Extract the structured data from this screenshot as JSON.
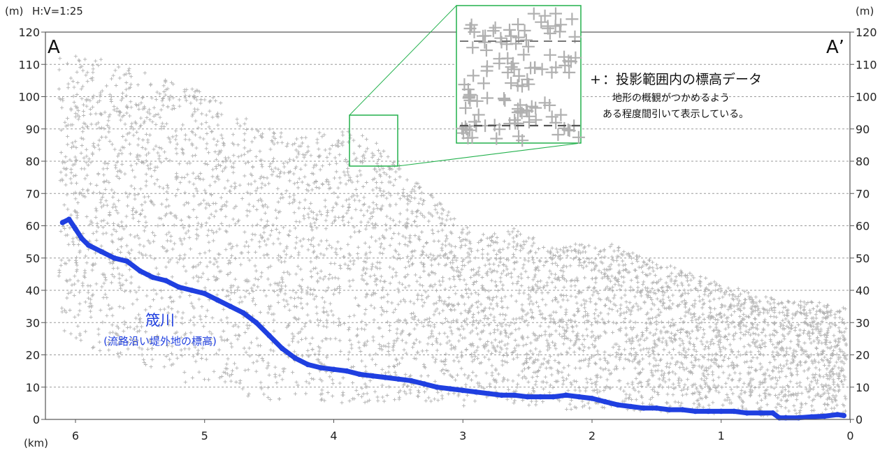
{
  "chart_data": {
    "type": "scatter",
    "title": "",
    "scale_note": "H:V=1:25",
    "y_unit_left": "(m)",
    "y_unit_right": "(m)",
    "x_unit": "(km)",
    "start_label": "A",
    "end_label": "A’",
    "x_ticks": [
      6,
      5,
      4,
      3,
      2,
      1,
      0
    ],
    "y_ticks": [
      0,
      10,
      20,
      30,
      40,
      50,
      60,
      70,
      80,
      90,
      100,
      110,
      120
    ],
    "xlim": [
      6.15,
      0
    ],
    "ylim": [
      0,
      120
    ],
    "grid": "horizontal dashed",
    "legend": {
      "marker": "+",
      "line1": "：投影範囲内の標高データ",
      "line2": "地形の概観がつかめるよう",
      "line3": "ある程度間引いて表示している。"
    },
    "river_label": {
      "name": "筬川",
      "detail": "(流路沿い堤外地の標高)"
    },
    "inset": "magnified view of elevation points near 3.6–3.8 km, 80–92 m",
    "colors": {
      "river": "#1f3fe0",
      "points": "#b4b4b4",
      "inset_frame": "#22b14c"
    },
    "series": [
      {
        "name": "筬川",
        "x": [
          6.1,
          6.05,
          6.0,
          5.95,
          5.9,
          5.8,
          5.7,
          5.6,
          5.5,
          5.4,
          5.3,
          5.2,
          5.1,
          5.0,
          4.9,
          4.8,
          4.7,
          4.6,
          4.5,
          4.4,
          4.3,
          4.2,
          4.1,
          4.0,
          3.9,
          3.8,
          3.7,
          3.6,
          3.5,
          3.4,
          3.3,
          3.2,
          3.1,
          3.0,
          2.9,
          2.8,
          2.7,
          2.6,
          2.5,
          2.4,
          2.3,
          2.2,
          2.1,
          2.0,
          1.9,
          1.8,
          1.7,
          1.6,
          1.5,
          1.4,
          1.3,
          1.2,
          1.1,
          1.0,
          0.9,
          0.8,
          0.7,
          0.6,
          0.55,
          0.5,
          0.4,
          0.3,
          0.2,
          0.1,
          0.05
        ],
        "y": [
          61,
          62,
          59,
          56,
          54,
          52,
          50,
          49,
          46,
          44,
          43,
          41,
          40,
          39,
          37,
          35,
          33,
          30,
          26,
          22,
          19,
          17,
          16,
          15.5,
          15,
          14,
          13.5,
          13,
          12.5,
          12,
          11,
          10,
          9.5,
          9,
          8.5,
          8,
          7.5,
          7.5,
          7,
          7,
          7,
          7.5,
          7,
          6.5,
          5.5,
          4.5,
          4,
          3.5,
          3.5,
          3,
          3,
          2.5,
          2.5,
          2.5,
          2.5,
          2,
          2,
          2,
          0.5,
          0.5,
          0.5,
          0.8,
          1,
          1.5,
          1.2
        ]
      }
    ],
    "terrain_envelope": {
      "x": [
        6.15,
        5.8,
        5.5,
        5.2,
        5.0,
        4.8,
        4.5,
        4.2,
        4.0,
        3.8,
        3.6,
        3.4,
        3.2,
        3.0,
        2.8,
        2.6,
        2.4,
        2.2,
        2.0,
        1.8,
        1.6,
        1.4,
        1.2,
        1.0,
        0.8,
        0.6,
        0.4,
        0.2,
        0.05
      ],
      "upper": [
        113,
        112,
        108,
        104,
        102,
        96,
        90,
        88,
        90,
        89,
        84,
        75,
        68,
        60,
        57,
        60,
        55,
        54,
        55,
        54,
        50,
        48,
        45,
        42,
        40,
        38,
        37,
        36,
        35
      ],
      "lower": [
        28,
        20,
        16,
        12,
        10,
        8,
        6,
        5,
        5,
        5,
        5,
        5,
        5,
        4,
        4,
        4,
        4,
        3,
        3,
        3,
        2,
        2,
        2,
        1,
        1,
        1,
        1,
        1,
        1
      ]
    }
  }
}
